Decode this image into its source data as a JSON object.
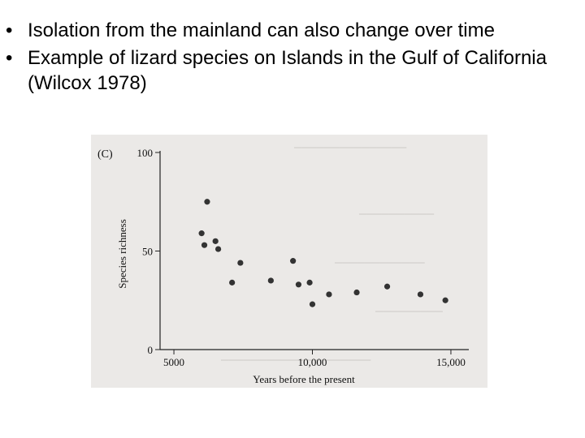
{
  "slide": {
    "bullets": [
      {
        "text": "Isolation from the mainland can also change over time"
      },
      {
        "text": "Example of lizard species on Islands in the Gulf of California (Wilcox 1978)"
      }
    ]
  },
  "chart_data": {
    "type": "scatter",
    "panel_label": "(C)",
    "xlabel": "Years before the present",
    "ylabel": "Species richness",
    "xlim": [
      4500,
      15500
    ],
    "ylim": [
      0,
      100
    ],
    "xticks": [
      5000,
      10000,
      15000
    ],
    "xtick_labels": [
      "5000",
      "10,000",
      "15,000"
    ],
    "yticks": [
      0,
      50,
      100
    ],
    "ytick_labels": [
      "0",
      "50",
      "100"
    ],
    "grid": false,
    "points": [
      {
        "x": 6200,
        "y": 75
      },
      {
        "x": 6000,
        "y": 59
      },
      {
        "x": 6100,
        "y": 53
      },
      {
        "x": 6500,
        "y": 55
      },
      {
        "x": 6600,
        "y": 51
      },
      {
        "x": 7100,
        "y": 34
      },
      {
        "x": 7400,
        "y": 44
      },
      {
        "x": 8500,
        "y": 35
      },
      {
        "x": 9300,
        "y": 45
      },
      {
        "x": 9500,
        "y": 33
      },
      {
        "x": 9900,
        "y": 34
      },
      {
        "x": 10000,
        "y": 23
      },
      {
        "x": 10600,
        "y": 28
      },
      {
        "x": 11600,
        "y": 29
      },
      {
        "x": 12700,
        "y": 32
      },
      {
        "x": 13900,
        "y": 28
      },
      {
        "x": 14800,
        "y": 25
      }
    ]
  }
}
